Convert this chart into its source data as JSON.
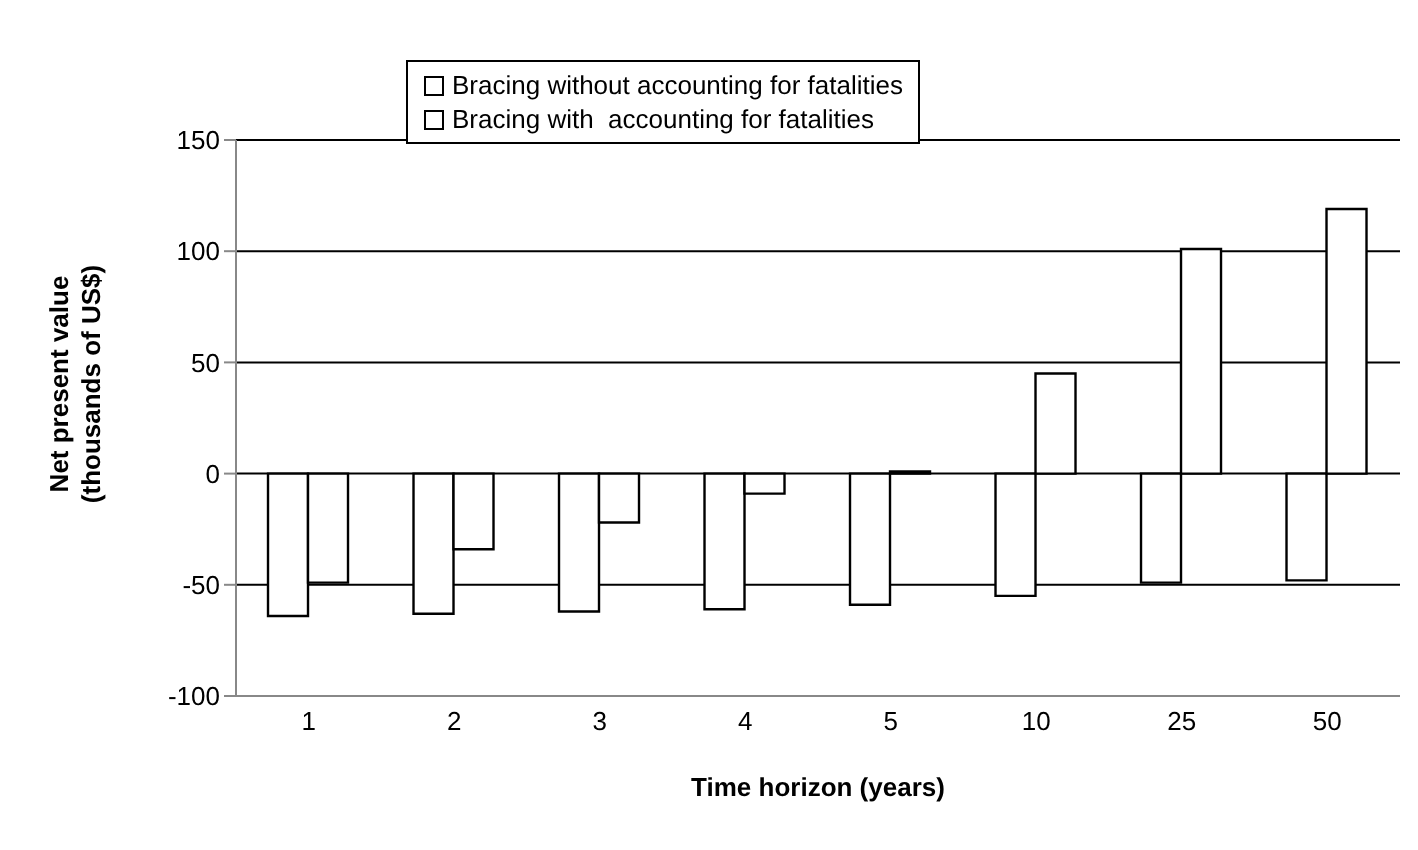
{
  "chart_data": {
    "type": "bar",
    "xlabel": "Time horizon (years)",
    "ylabel": "Net present value (thousands of US$)",
    "categories": [
      "1",
      "2",
      "3",
      "4",
      "5",
      "10",
      "25",
      "50"
    ],
    "series": [
      {
        "name": "Bracing without accounting for fatalities",
        "color": "#ffffff",
        "values": [
          -64,
          -63,
          -62,
          -61,
          -59,
          -55,
          -49,
          -48
        ]
      },
      {
        "name": "Bracing with  accounting for fatalities",
        "color": "#ffffff",
        "values": [
          -49,
          -34,
          -22,
          -9,
          1,
          45,
          101,
          119
        ]
      }
    ],
    "ylim": [
      -100,
      150
    ],
    "yticks": [
      -100,
      -50,
      0,
      50,
      100,
      150
    ],
    "grid": "y",
    "legend": "top"
  }
}
